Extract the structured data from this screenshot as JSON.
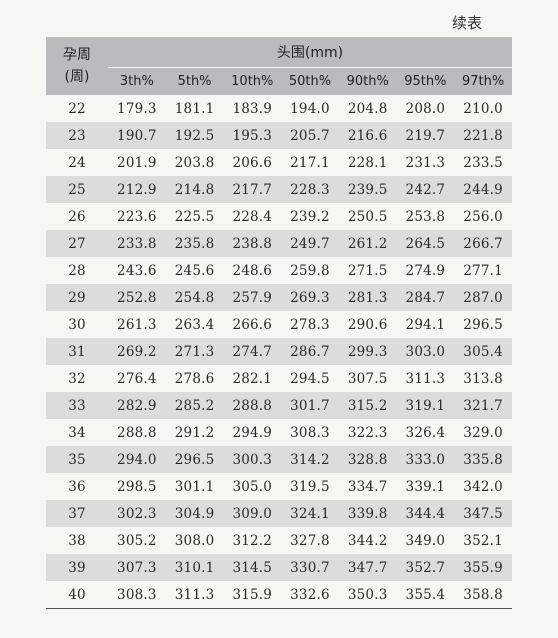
{
  "continued_label": "续表",
  "table": {
    "week_header_line1": "孕周",
    "week_header_line2": "(周)",
    "group_header": "头围(mm)",
    "percentile_headers": [
      "3th%",
      "5th%",
      "10th%",
      "50th%",
      "90th%",
      "95th%",
      "97th%"
    ],
    "rows": [
      [
        "22",
        "179.3",
        "181.1",
        "183.9",
        "194.0",
        "204.8",
        "208.0",
        "210.0"
      ],
      [
        "23",
        "190.7",
        "192.5",
        "195.3",
        "205.7",
        "216.6",
        "219.7",
        "221.8"
      ],
      [
        "24",
        "201.9",
        "203.8",
        "206.6",
        "217.1",
        "228.1",
        "231.3",
        "233.5"
      ],
      [
        "25",
        "212.9",
        "214.8",
        "217.7",
        "228.3",
        "239.5",
        "242.7",
        "244.9"
      ],
      [
        "26",
        "223.6",
        "225.5",
        "228.4",
        "239.2",
        "250.5",
        "253.8",
        "256.0"
      ],
      [
        "27",
        "233.8",
        "235.8",
        "238.8",
        "249.7",
        "261.2",
        "264.5",
        "266.7"
      ],
      [
        "28",
        "243.6",
        "245.6",
        "248.6",
        "259.8",
        "271.5",
        "274.9",
        "277.1"
      ],
      [
        "29",
        "252.8",
        "254.8",
        "257.9",
        "269.3",
        "281.3",
        "284.7",
        "287.0"
      ],
      [
        "30",
        "261.3",
        "263.4",
        "266.6",
        "278.3",
        "290.6",
        "294.1",
        "296.5"
      ],
      [
        "31",
        "269.2",
        "271.3",
        "274.7",
        "286.7",
        "299.3",
        "303.0",
        "305.4"
      ],
      [
        "32",
        "276.4",
        "278.6",
        "282.1",
        "294.5",
        "307.5",
        "311.3",
        "313.8"
      ],
      [
        "33",
        "282.9",
        "285.2",
        "288.8",
        "301.7",
        "315.2",
        "319.1",
        "321.7"
      ],
      [
        "34",
        "288.8",
        "291.2",
        "294.9",
        "308.3",
        "322.3",
        "326.4",
        "329.0"
      ],
      [
        "35",
        "294.0",
        "296.5",
        "300.3",
        "314.2",
        "328.8",
        "333.0",
        "335.8"
      ],
      [
        "36",
        "298.5",
        "301.1",
        "305.0",
        "319.5",
        "334.7",
        "339.1",
        "342.0"
      ],
      [
        "37",
        "302.3",
        "304.9",
        "309.0",
        "324.1",
        "339.8",
        "344.4",
        "347.5"
      ],
      [
        "38",
        "305.2",
        "308.0",
        "312.2",
        "327.8",
        "344.2",
        "349.0",
        "352.1"
      ],
      [
        "39",
        "307.3",
        "310.1",
        "314.5",
        "330.7",
        "347.7",
        "352.7",
        "355.9"
      ],
      [
        "40",
        "308.3",
        "311.3",
        "315.9",
        "332.6",
        "350.3",
        "355.4",
        "358.8"
      ]
    ]
  }
}
